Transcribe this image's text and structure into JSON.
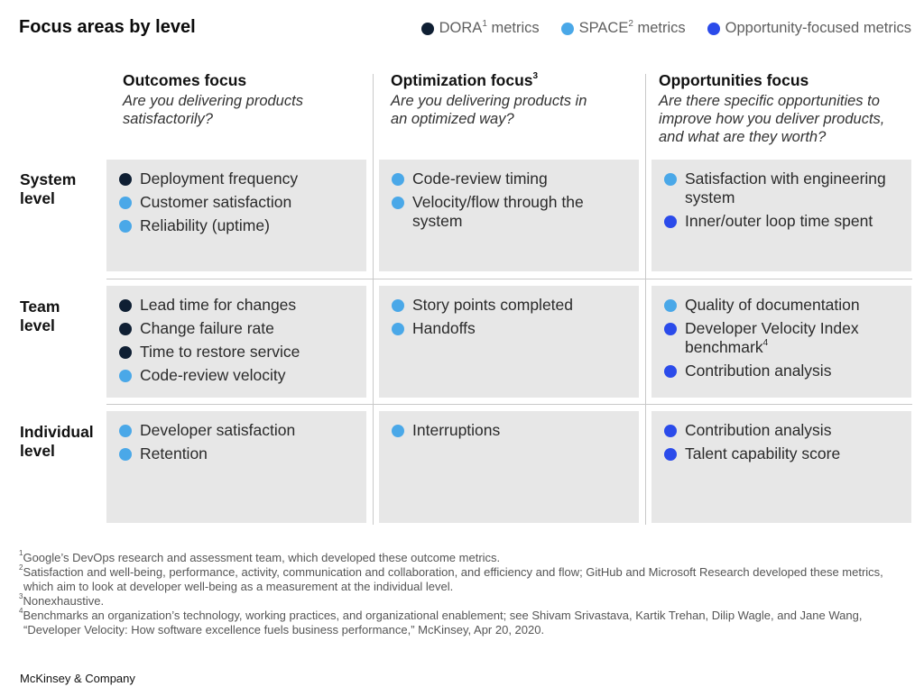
{
  "title": "Focus areas by level",
  "colors": {
    "dora": "#0f1f33",
    "space": "#4aa8e8",
    "opportunity": "#2b4bea",
    "cell_bg": "#e7e7e7"
  },
  "legend": [
    {
      "key": "dora",
      "label_pre": "DORA",
      "sup": "1",
      "label_post": " metrics"
    },
    {
      "key": "space",
      "label_pre": "SPACE",
      "sup": "2",
      "label_post": " metrics"
    },
    {
      "key": "opportunity",
      "label_pre": "Opportunity-focused metrics",
      "sup": "",
      "label_post": ""
    }
  ],
  "columns": [
    {
      "heading": "Outcomes focus",
      "sup": "",
      "question": "Are you delivering products satisfactorily?"
    },
    {
      "heading": "Optimization focus",
      "sup": "3",
      "question": "Are you delivering products in an optimized way?"
    },
    {
      "heading": "Opportunities focus",
      "sup": "",
      "question": "Are there specific opportunities to improve how you deliver products, and what are they worth?"
    }
  ],
  "rows": [
    {
      "label_line1": "System",
      "label_line2": "level"
    },
    {
      "label_line1": "Team",
      "label_line2": "level"
    },
    {
      "label_line1": "Individual",
      "label_line2": "level"
    }
  ],
  "cells": [
    [
      [
        {
          "type": "dora",
          "text": "Deployment frequency"
        },
        {
          "type": "space",
          "text": "Customer satisfaction"
        },
        {
          "type": "space",
          "text": "Reliability (uptime)"
        }
      ],
      [
        {
          "type": "space",
          "text": "Code-review timing"
        },
        {
          "type": "space",
          "text": "Velocity/flow through the system"
        }
      ],
      [
        {
          "type": "space",
          "text": "Satisfaction with engineering system"
        },
        {
          "type": "opportunity",
          "text": "Inner/outer loop time spent"
        }
      ]
    ],
    [
      [
        {
          "type": "dora",
          "text": "Lead time for changes"
        },
        {
          "type": "dora",
          "text": "Change failure rate"
        },
        {
          "type": "dora",
          "text": "Time to restore service"
        },
        {
          "type": "space",
          "text": "Code-review velocity"
        }
      ],
      [
        {
          "type": "space",
          "text": "Story points completed"
        },
        {
          "type": "space",
          "text": "Handoffs"
        }
      ],
      [
        {
          "type": "space",
          "text": "Quality of documentation"
        },
        {
          "type": "opportunity",
          "text": "Developer Velocity Index benchmark",
          "sup": "4"
        },
        {
          "type": "opportunity",
          "text": "Contribution analysis"
        }
      ]
    ],
    [
      [
        {
          "type": "space",
          "text": "Developer satisfaction"
        },
        {
          "type": "space",
          "text": "Retention"
        }
      ],
      [
        {
          "type": "space",
          "text": "Interruptions"
        }
      ],
      [
        {
          "type": "opportunity",
          "text": "Contribution analysis"
        },
        {
          "type": "opportunity",
          "text": "Talent capability score"
        }
      ]
    ]
  ],
  "footnotes": [
    {
      "n": "1",
      "text": "Google’s DevOps research and assessment team, which developed these outcome metrics."
    },
    {
      "n": "2",
      "text": "Satisfaction and well-being, performance, activity, communication and collaboration, and efficiency and flow; GitHub and Microsoft Research developed these metrics, which aim to look at developer well-being as a measurement at the individual level."
    },
    {
      "n": "3",
      "text": "Nonexhaustive."
    },
    {
      "n": "4",
      "text": "Benchmarks an organization’s technology, working practices, and organizational enablement; see Shivam Srivastava, Kartik Trehan, Dilip Wagle, and Jane Wang, “Developer Velocity: How software excellence fuels business performance,” McKinsey, Apr 20, 2020."
    }
  ],
  "brand": "McKinsey & Company"
}
